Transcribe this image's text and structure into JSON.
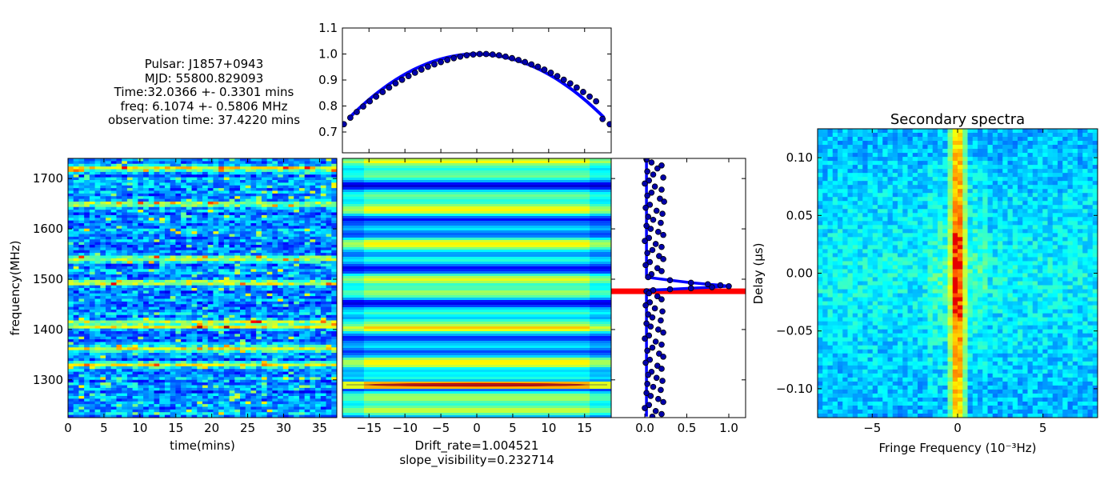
{
  "info": {
    "pulsar": "Pulsar: J1857+0943",
    "mjd": "MJD: 55800.829093",
    "time": "Time:32.0366 +- 0.3301 mins",
    "freq": "freq: 6.1074 +- 0.5806 MHz",
    "obs_time": "observation time: 37.4220 mins"
  },
  "chart_data": [
    {
      "id": "dynamic-spectrum",
      "type": "heatmap",
      "title": "",
      "xlabel": "time(mins)",
      "ylabel": "frequency(MHz)",
      "xlim": [
        0,
        37.4
      ],
      "ylim": [
        1225,
        1740
      ],
      "xticks": [
        0,
        5,
        10,
        15,
        20,
        25,
        30,
        35
      ],
      "yticks": [
        1300,
        1400,
        1500,
        1600,
        1700
      ],
      "colormap": "jet",
      "bright_bands_mhz": [
        1330,
        1362,
        1405,
        1415,
        1492,
        1540,
        1650,
        1720
      ]
    },
    {
      "id": "time-profile",
      "type": "scatter",
      "title": "",
      "xlabel": "",
      "ylabel": "",
      "xlim": [
        -18.7,
        18.7
      ],
      "ylim": [
        0.62,
        1.1
      ],
      "yticks": [
        0.7,
        0.8,
        0.9,
        1.0,
        1.1
      ],
      "ytick_labels": [
        "0.7",
        "0.8",
        "0.9",
        "1.0",
        "1.1"
      ],
      "x": [
        -18.5,
        -17.6,
        -16.7,
        -15.8,
        -14.9,
        -14.0,
        -13.1,
        -12.2,
        -11.3,
        -10.4,
        -9.5,
        -8.6,
        -7.7,
        -6.8,
        -5.9,
        -5.0,
        -4.1,
        -3.2,
        -2.3,
        -1.4,
        -0.5,
        0.4,
        1.3,
        2.2,
        3.1,
        4.0,
        4.9,
        5.8,
        6.7,
        7.6,
        8.5,
        9.4,
        10.3,
        11.2,
        12.1,
        13.0,
        13.9,
        14.8,
        15.7,
        16.6,
        17.5,
        18.5
      ],
      "y": [
        0.73,
        0.755,
        0.777,
        0.798,
        0.818,
        0.836,
        0.854,
        0.871,
        0.887,
        0.901,
        0.915,
        0.928,
        0.94,
        0.951,
        0.96,
        0.969,
        0.977,
        0.984,
        0.99,
        0.995,
        0.998,
        1.0,
        1.0,
        0.998,
        0.995,
        0.99,
        0.984,
        0.977,
        0.969,
        0.96,
        0.951,
        0.94,
        0.928,
        0.915,
        0.901,
        0.887,
        0.871,
        0.854,
        0.836,
        0.818,
        0.75,
        0.73
      ],
      "fit_color": "#0000ff",
      "point_color": "#0000aa"
    },
    {
      "id": "autocorrelation",
      "type": "heatmap",
      "title": "",
      "xlabel": "Drift_rate=1.004521",
      "xlabel2": "slope_visibility=0.232714",
      "ylabel": "",
      "xlim": [
        -18.7,
        18.7
      ],
      "xticks": [
        -15,
        -10,
        -5,
        0,
        5,
        10,
        15
      ],
      "xtick_labels": [
        "−15",
        "−10",
        "−5",
        "0",
        "5",
        "10",
        "15"
      ],
      "colormap": "jet",
      "peak_line_color": "#cc0000"
    },
    {
      "id": "frequency-profile",
      "type": "scatter",
      "title": "",
      "xlabel": "",
      "ylabel": "",
      "xlim": [
        -0.4,
        1.2
      ],
      "xticks": [
        0.0,
        0.5,
        1.0
      ],
      "xtick_labels": [
        "0.0",
        "0.5",
        "1.0"
      ],
      "y": [
        1738,
        1732,
        1726,
        1720,
        1714,
        1708,
        1702,
        1696,
        1690,
        1684,
        1678,
        1672,
        1666,
        1660,
        1654,
        1648,
        1642,
        1636,
        1630,
        1624,
        1618,
        1612,
        1606,
        1600,
        1594,
        1588,
        1582,
        1576,
        1570,
        1564,
        1558,
        1552,
        1546,
        1540,
        1534,
        1528,
        1522,
        1516,
        1510,
        1504,
        1498,
        1493,
        1490,
        1488,
        1486,
        1484,
        1482,
        1480,
        1478,
        1476,
        1472,
        1466,
        1460,
        1454,
        1448,
        1442,
        1436,
        1430,
        1424,
        1418,
        1412,
        1406,
        1400,
        1394,
        1388,
        1382,
        1376,
        1370,
        1364,
        1358,
        1352,
        1346,
        1340,
        1334,
        1328,
        1322,
        1316,
        1310,
        1304,
        1298,
        1292,
        1286,
        1280,
        1274,
        1268,
        1262,
        1256,
        1250,
        1244,
        1238,
        1232,
        1227
      ],
      "x": [
        0.02,
        0.08,
        0.2,
        0.15,
        0.03,
        0.1,
        0.22,
        0.05,
        0.0,
        0.12,
        0.2,
        0.08,
        0.03,
        0.18,
        0.23,
        0.06,
        0.01,
        0.14,
        0.21,
        0.04,
        0.1,
        0.19,
        0.02,
        0.07,
        0.16,
        0.22,
        0.05,
        0.0,
        0.13,
        0.2,
        0.09,
        0.03,
        0.17,
        0.22,
        0.06,
        0.01,
        0.15,
        0.2,
        0.08,
        0.04,
        0.3,
        0.55,
        0.75,
        0.9,
        1.0,
        0.8,
        0.55,
        0.3,
        0.1,
        0.02,
        0.05,
        0.15,
        0.2,
        0.06,
        0.01,
        0.12,
        0.21,
        0.04,
        0.09,
        0.19,
        0.02,
        0.07,
        0.16,
        0.22,
        0.05,
        0.0,
        0.13,
        0.2,
        0.09,
        0.03,
        0.17,
        0.22,
        0.06,
        0.01,
        0.15,
        0.2,
        0.08,
        0.04,
        0.14,
        0.21,
        0.03,
        0.1,
        0.19,
        0.02,
        0.07,
        0.16,
        0.22,
        0.05,
        0.0,
        0.13,
        0.2,
        0.09
      ],
      "fit_color": "#0000ff",
      "model_line_color": "#ff0000",
      "model_line_y": 1476
    },
    {
      "id": "secondary-spectra",
      "type": "heatmap",
      "title": "Secondary spectra",
      "xlabel": "Fringe Frequency (10⁻³Hz)",
      "ylabel": "Delay (µs)",
      "xlim": [
        -8.2,
        8.2
      ],
      "ylim": [
        -0.125,
        0.125
      ],
      "xticks": [
        -5,
        0,
        5
      ],
      "xtick_labels": [
        "−5",
        "0",
        "5"
      ],
      "yticks": [
        0.1,
        0.05,
        0.0,
        -0.05,
        -0.1
      ],
      "ytick_labels": [
        "0.10",
        "0.05",
        "0.00",
        "−0.05",
        "−0.10"
      ],
      "colormap": "jet"
    }
  ]
}
